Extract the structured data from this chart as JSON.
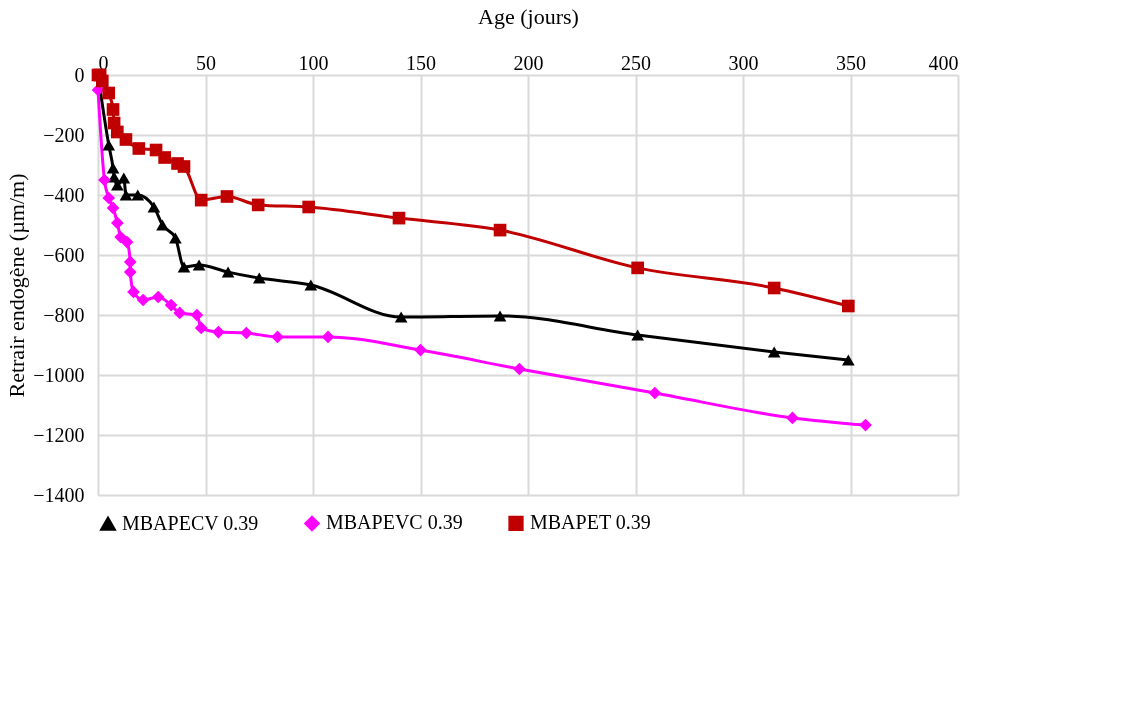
{
  "chart_data": {
    "type": "line",
    "xlabel": "Age (jours)",
    "ylabel": "Retrair endogène (µm/m)",
    "xlim": [
      0,
      400
    ],
    "xticks": [
      0,
      50,
      100,
      150,
      200,
      250,
      300,
      350,
      400
    ],
    "ylim": [
      -1400,
      0
    ],
    "yticks": [
      -1400,
      -1200,
      -1000,
      -800,
      -600,
      -400,
      -200,
      0
    ],
    "grid": true,
    "legend": "bottom",
    "series": [
      {
        "name": "MBAPECV 0.39",
        "color": "#000000",
        "marker": "triangle",
        "x": [
          0,
          5,
          7,
          7.5,
          9,
          12,
          13,
          18.5,
          26,
          30,
          36,
          40,
          47,
          60.5,
          75,
          99,
          141,
          187,
          251,
          314.5,
          349
        ],
        "values": [
          0,
          -233,
          -310,
          -340,
          -367,
          -343,
          -400,
          -400,
          -440,
          -500,
          -543,
          -640,
          -633,
          -657,
          -677,
          -700,
          -807,
          -803,
          -867,
          -923,
          -950
        ]
      },
      {
        "name": "MBAPEVC 0.39",
        "color": "#ff00ff",
        "marker": "diamond",
        "x": [
          0,
          3,
          5,
          7,
          9,
          10.5,
          13.5,
          15,
          15,
          16.5,
          21,
          28,
          34,
          38,
          46,
          48,
          56,
          69,
          83.5,
          107,
          150,
          196,
          259,
          323,
          357
        ],
        "values": [
          -50,
          -350,
          -410,
          -443,
          -493,
          -540,
          -557,
          -623,
          -657,
          -723,
          -750,
          -740,
          -767,
          -793,
          -800,
          -843,
          -857,
          -860,
          -873,
          -873,
          -917,
          -980,
          -1060,
          -1143,
          -1167
        ]
      },
      {
        "name": "MBAPET 0.39",
        "color": "#c00000",
        "marker": "square",
        "x": [
          0,
          1,
          2,
          5,
          7,
          7.5,
          9,
          13,
          19,
          27,
          31,
          37,
          40,
          48,
          60,
          74.5,
          98,
          140,
          187,
          251,
          314.5,
          349
        ],
        "values": [
          0,
          0,
          -20,
          -60,
          -115,
          -160,
          -190,
          -215,
          -245,
          -250,
          -275,
          -295,
          -305,
          -417,
          -405,
          -433,
          -440,
          -477,
          -517,
          -643,
          -710,
          -770
        ]
      }
    ]
  }
}
